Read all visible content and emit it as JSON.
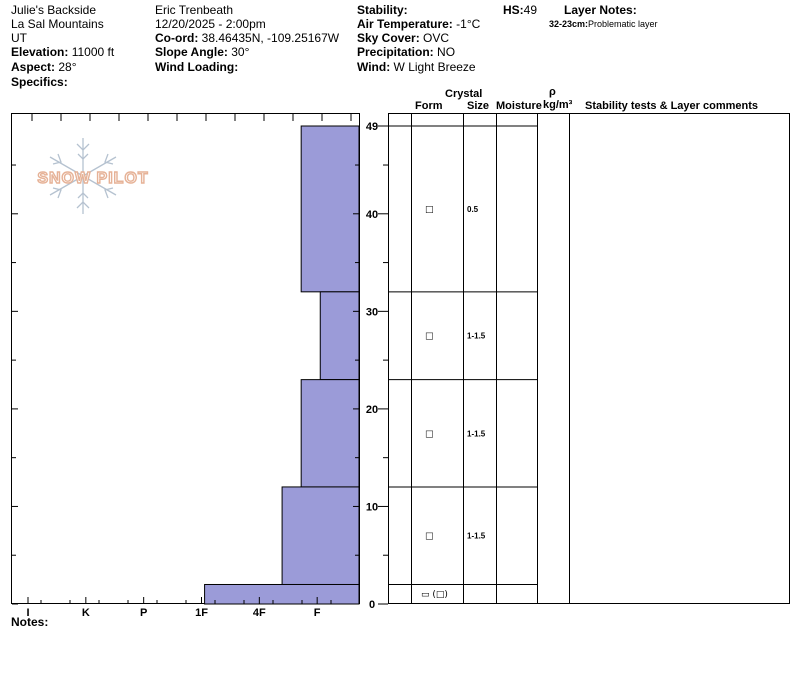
{
  "header": {
    "location": "Julie's Backside",
    "range": "La Sal Mountains",
    "state": "UT",
    "elevation_label": "Elevation:",
    "elevation_value": " 11000 ft",
    "aspect_label": "Aspect:",
    "aspect_value": " 28°",
    "specifics_label": "Specifics:",
    "observer": "Eric Trenbeath",
    "datetime": "12/20/2025 - 2:00pm",
    "coord_label": "Co-ord:",
    "coord_value": " 38.46435N, -109.25167W",
    "slope_label": "Slope Angle:",
    "slope_value": " 30°",
    "wind_loading_label": "Wind Loading:",
    "stability_label": "Stability:",
    "air_temp_label": "Air Temperature:",
    "air_temp_value": " -1°C",
    "sky_label": "Sky Cover:",
    "sky_value": " OVC",
    "precip_label": "Precipitation:",
    "precip_value": " NO",
    "wind_label": "Wind:",
    "wind_value": "  W Light Breeze",
    "hs_label": "HS:",
    "hs_value": "49",
    "layer_notes_label": "Layer Notes:",
    "layer_note_depth": "32-23cm:",
    "layer_note_text": "Problematic layer"
  },
  "columns": {
    "crystal": "Crystal",
    "form": "Form",
    "size": "Size",
    "moisture": "Moisture",
    "rho": "ρ",
    "density_unit": "kg/m³",
    "comments": "Stability tests & Layer comments"
  },
  "notes_label": "Notes:",
  "logo_text": "SNOW PILOT",
  "chart_data": {
    "type": "bar",
    "orientation": "horizontal-step",
    "y_axis": {
      "label": "",
      "range": [
        0,
        49
      ],
      "ticks": [
        0,
        10,
        20,
        30,
        40,
        49
      ],
      "reversed": false
    },
    "x_axis": {
      "label": "",
      "categories": [
        "I",
        "K",
        "P",
        "1F",
        "4F",
        "F"
      ],
      "reversed": true
    },
    "layers": [
      {
        "top": 49,
        "bottom": 32,
        "hardness": "F"
      },
      {
        "top": 32,
        "bottom": 23,
        "hardness": "F-"
      },
      {
        "top": 23,
        "bottom": 12,
        "hardness": "F"
      },
      {
        "top": 12,
        "bottom": 2,
        "hardness": "4F-"
      },
      {
        "top": 2,
        "bottom": 0,
        "hardness": "1F+"
      }
    ],
    "hardness_index": {
      "F": 1.0,
      "F-": 0.67,
      "4F-": 1.33,
      "1F+": 2.67
    },
    "fill_color": "#9b9bd8"
  },
  "table_layers": [
    {
      "top": 49,
      "bottom": 32,
      "form": "□",
      "size": "0.5"
    },
    {
      "top": 32,
      "bottom": 23,
      "form": "□",
      "size": "1-1.5"
    },
    {
      "top": 23,
      "bottom": 12,
      "form": "□",
      "size": "1-1.5"
    },
    {
      "top": 12,
      "bottom": 2,
      "form": "□",
      "size": "1-1.5"
    },
    {
      "top": 2,
      "bottom": 0,
      "form": "▭ (□)",
      "size": ""
    }
  ]
}
